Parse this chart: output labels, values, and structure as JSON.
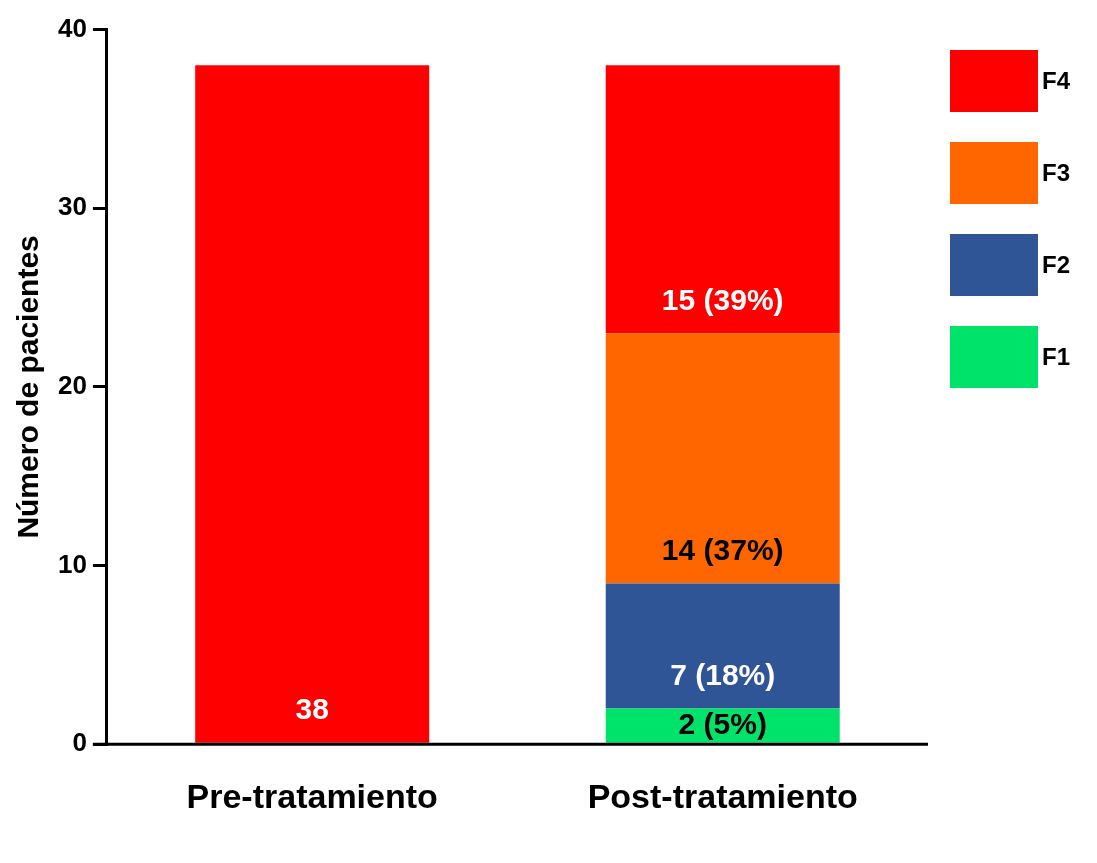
{
  "chart_data": {
    "type": "bar",
    "ylabel": "Número de pacientes",
    "categories": [
      "Pre-tratamiento",
      "Post-tratamiento"
    ],
    "stacked": true,
    "ylim": [
      0,
      40
    ],
    "yticks": [
      0,
      10,
      20,
      30,
      40
    ],
    "grid": false,
    "legend": "right",
    "series": [
      {
        "name": "F1",
        "color": "#00e36b",
        "values": [
          null,
          2
        ],
        "value_labels": [
          null,
          "2 (5%)"
        ]
      },
      {
        "name": "F2",
        "color": "#2f5597",
        "values": [
          null,
          7
        ],
        "value_labels": [
          null,
          "7 (18%)"
        ]
      },
      {
        "name": "F3",
        "color": "#ff6600",
        "values": [
          null,
          14
        ],
        "value_labels": [
          null,
          "14 (37%)"
        ]
      },
      {
        "name": "F4",
        "color": "#ff0000",
        "values": [
          38,
          15
        ],
        "value_labels": [
          "38",
          "15 (39%)"
        ]
      }
    ]
  }
}
